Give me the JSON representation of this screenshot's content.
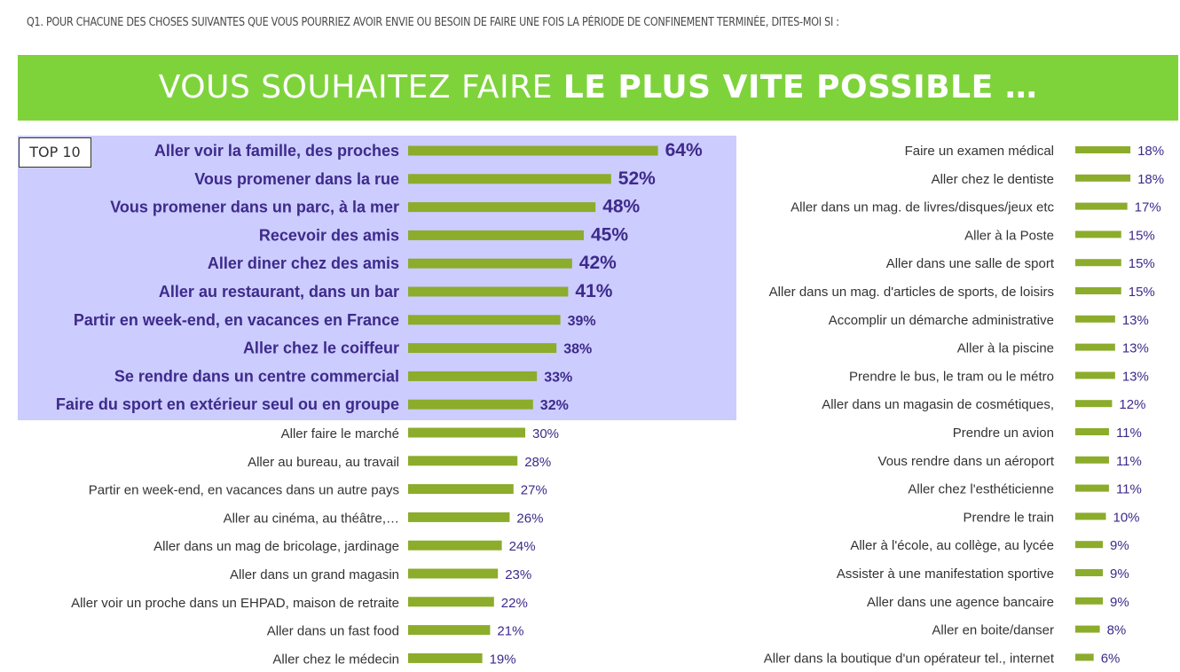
{
  "header": {
    "question": "Q1. POUR CHACUNE DES CHOSES SUIVANTES QUE VOUS POURRIEZ AVOIR ENVIE OU BESOIN DE FAIRE UNE FOIS LA PÉRIODE DE CONFINEMENT TERMINÉE, DITES-MOI SI :",
    "banner_light": "VOUS SOUHAITEZ FAIRE ",
    "banner_bold": "LE PLUS VITE POSSIBLE …",
    "top_tag": "TOP 10"
  },
  "colors": {
    "bar": "#8cac2b",
    "banner": "#7ed33b",
    "highlight": "#ccccff",
    "top_label": "#3d2a8a",
    "value_text": "#3d2a8a",
    "label_text": "#333333"
  },
  "chart_data": {
    "type": "bar",
    "orientation": "horizontal",
    "unit": "%",
    "highlight_group": "TOP 10",
    "columns": [
      {
        "items": [
          {
            "label": "Aller voir la famille, des proches",
            "value": 64,
            "top": true
          },
          {
            "label": "Vous promener dans la rue",
            "value": 52,
            "top": true
          },
          {
            "label": "Vous promener dans un parc, à la mer",
            "value": 48,
            "top": true
          },
          {
            "label": "Recevoir des amis",
            "value": 45,
            "top": true
          },
          {
            "label": "Aller diner chez des amis",
            "value": 42,
            "top": true
          },
          {
            "label": "Aller au restaurant, dans un bar",
            "value": 41,
            "top": true
          },
          {
            "label": "Partir en week-end, en vacances en France",
            "value": 39,
            "top": true
          },
          {
            "label": "Aller chez le coiffeur",
            "value": 38,
            "top": true
          },
          {
            "label": "Se rendre dans un centre commercial",
            "value": 33,
            "top": true
          },
          {
            "label": "Faire du sport en extérieur seul ou en groupe",
            "value": 32,
            "top": true
          },
          {
            "label": "Aller faire le marché",
            "value": 30,
            "top": false
          },
          {
            "label": "Aller au bureau, au travail",
            "value": 28,
            "top": false
          },
          {
            "label": "Partir en week-end, en vacances dans un autre pays",
            "value": 27,
            "top": false
          },
          {
            "label": "Aller au cinéma, au théâtre,…",
            "value": 26,
            "top": false
          },
          {
            "label": "Aller dans un mag de bricolage, jardinage",
            "value": 24,
            "top": false
          },
          {
            "label": "Aller dans un grand magasin",
            "value": 23,
            "top": false
          },
          {
            "label": "Aller voir un proche dans un EHPAD, maison de retraite",
            "value": 22,
            "top": false
          },
          {
            "label": "Aller dans un fast food",
            "value": 21,
            "top": false
          },
          {
            "label": "Aller chez le médecin",
            "value": 19,
            "top": false
          }
        ]
      },
      {
        "items": [
          {
            "label": "Faire un examen médical",
            "value": 18
          },
          {
            "label": "Aller chez le dentiste",
            "value": 18
          },
          {
            "label": "Aller dans un mag. de livres/disques/jeux etc",
            "value": 17
          },
          {
            "label": "Aller à la Poste",
            "value": 15
          },
          {
            "label": "Aller dans une salle de sport",
            "value": 15
          },
          {
            "label": "Aller dans un mag. d'articles de sports, de loisirs",
            "value": 15
          },
          {
            "label": "Accomplir un démarche administrative",
            "value": 13
          },
          {
            "label": "Aller à la piscine",
            "value": 13
          },
          {
            "label": "Prendre le bus, le tram ou le métro",
            "value": 13
          },
          {
            "label": "Aller dans un magasin de cosmétiques,",
            "value": 12
          },
          {
            "label": "Prendre un avion",
            "value": 11
          },
          {
            "label": "Vous rendre dans un aéroport",
            "value": 11
          },
          {
            "label": "Aller chez l'esthéticienne",
            "value": 11
          },
          {
            "label": "Prendre le train",
            "value": 10
          },
          {
            "label": "Aller à l'école, au collège, au lycée",
            "value": 9
          },
          {
            "label": "Assister à une manifestation sportive",
            "value": 9
          },
          {
            "label": "Aller dans une agence bancaire",
            "value": 9
          },
          {
            "label": "Aller en boite/danser",
            "value": 8
          },
          {
            "label": "Aller dans la boutique d'un opérateur tel., internet",
            "value": 6
          }
        ]
      }
    ]
  }
}
